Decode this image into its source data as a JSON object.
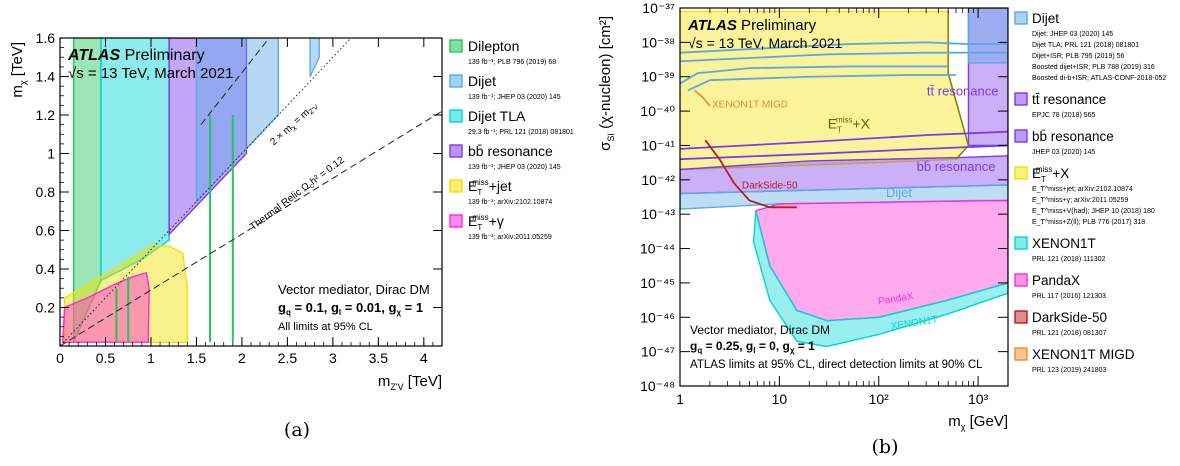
{
  "colors": {
    "green": "#22c55e",
    "blue": "#5aa9e6",
    "cyan": "#00d5d5",
    "purple": "#7c3aed",
    "yellow": "#f2e200",
    "magenta": "#ff2ad4",
    "red": "#b91c1c",
    "orange": "#f28c28"
  },
  "chart_data": [
    {
      "type": "area",
      "panel_label": "(a)",
      "experiment": "ATLAS",
      "status": "Preliminary",
      "energy": "√s = 13 TeV, March 2021",
      "xlabel": "m",
      "xlabel_sub": "Z'V",
      "xlabel_unit": "[TeV]",
      "ylabel": "m",
      "ylabel_sub": "χ",
      "ylabel_unit": "[TeV]",
      "xlim": [
        0,
        4.2
      ],
      "ylim": [
        0,
        1.6
      ],
      "xticks": [
        "0",
        "0.5",
        "1",
        "1.5",
        "2",
        "2.5",
        "3",
        "3.5",
        "4"
      ],
      "yticks": [
        "0.2",
        "0.4",
        "0.6",
        "0.8",
        "1",
        "1.2",
        "1.4",
        "1.6"
      ],
      "diag_label": "2 × m",
      "diag_label_sub": "χ",
      "diag_label_rhs": " = m",
      "diag_label_rhs_sub": "Z'V",
      "relic_label": "Thermal Relic Ω",
      "relic_label_sub": "c",
      "relic_label_tail": "h² = 0.12",
      "info": {
        "line1": "Vector mediator, Dirac DM",
        "line2": "g  = 0.1, g  = 0.01, g  = 1",
        "line2_parts": [
          "g",
          "q",
          " = 0.1, g",
          "l",
          " = 0.01, g",
          "χ",
          " = 1"
        ],
        "line3": "All limits at 95% CL"
      },
      "legend": [
        {
          "name": "Dilepton",
          "ref": "139 fb⁻¹; PLB 796 (2019) 68",
          "color": "#22c55e"
        },
        {
          "name": "Dijet",
          "ref": "139 fb⁻¹; JHEP 03 (2020) 145",
          "color": "#5aa9e6"
        },
        {
          "name": "Dijet TLA",
          "ref": "29.3 fb⁻¹; PRL 121 (2018) 081801",
          "color": "#00d5d5"
        },
        {
          "name": "bb̄ resonance",
          "ref": "139 fb⁻¹; JHEP 03 (2020) 145",
          "color": "#7c3aed"
        },
        {
          "name": "E",
          "name_sup": "miss",
          "name_sub": "T",
          "name_tail": "+jet",
          "ref": "139 fb⁻¹; arXiv:2102.10874",
          "color": "#f2e200"
        },
        {
          "name": "E",
          "name_sup": "miss",
          "name_sub": "T",
          "name_tail": "+γ",
          "ref": "139 fb⁻¹; arXiv:2011.05259",
          "color": "#ff2ad4"
        }
      ],
      "regions": [
        {
          "name": "Dilepton",
          "color": "#22c55e",
          "points": [
            [
              0.15,
              0.02
            ],
            [
              0.15,
              1.6
            ],
            [
              0.45,
              1.6
            ],
            [
              0.45,
              0.34
            ],
            [
              0.15,
              0.02
            ]
          ]
        },
        {
          "name": "Dijet TLA",
          "color": "#00d5d5",
          "points": [
            [
              0.45,
              0.34
            ],
            [
              0.45,
              1.6
            ],
            [
              1.2,
              1.6
            ],
            [
              1.2,
              0.55
            ],
            [
              0.9,
              0.45
            ],
            [
              0.45,
              0.34
            ]
          ]
        },
        {
          "name": "bb̄ resonance",
          "color": "#7c3aed",
          "points": [
            [
              1.2,
              0.58
            ],
            [
              1.2,
              1.6
            ],
            [
              2.05,
              1.6
            ],
            [
              2.05,
              1.0
            ],
            [
              1.2,
              0.58
            ]
          ]
        },
        {
          "name": "Dijet",
          "color": "#5aa9e6",
          "points": [
            [
              1.5,
              0.75
            ],
            [
              1.5,
              1.6
            ],
            [
              2.4,
              1.6
            ],
            [
              2.4,
              1.2
            ],
            [
              1.5,
              0.75
            ]
          ]
        },
        {
          "name": "Dijet high",
          "color": "#5aa9e6",
          "points": [
            [
              2.75,
              1.4
            ],
            [
              2.75,
              1.6
            ],
            [
              2.85,
              1.6
            ],
            [
              2.85,
              1.5
            ],
            [
              2.75,
              1.4
            ]
          ]
        },
        {
          "name": "E_T^miss+jet",
          "color": "#f2e200",
          "points": [
            [
              0.05,
              0.02
            ],
            [
              0.05,
              0.25
            ],
            [
              0.6,
              0.4
            ],
            [
              1.0,
              0.52
            ],
            [
              1.2,
              0.52
            ],
            [
              1.35,
              0.48
            ],
            [
              1.4,
              0.3
            ],
            [
              1.4,
              0.02
            ]
          ]
        },
        {
          "name": "E_T^miss+γ",
          "color": "#ff2ad4",
          "points": [
            [
              0.03,
              0.02
            ],
            [
              0.05,
              0.2
            ],
            [
              0.3,
              0.25
            ],
            [
              0.6,
              0.32
            ],
            [
              0.8,
              0.36
            ],
            [
              0.95,
              0.38
            ],
            [
              0.98,
              0.3
            ],
            [
              0.97,
              0.02
            ]
          ]
        }
      ],
      "lines": [
        {
          "name": "diag",
          "style": "dotted",
          "points": [
            [
              0,
              0
            ],
            [
              3.2,
              1.6
            ]
          ]
        },
        {
          "name": "relic",
          "style": "dashed",
          "points": [
            [
              0,
              0
            ],
            [
              4.2,
              1.22
            ]
          ]
        },
        {
          "name": "relic2",
          "style": "dashed",
          "points": [
            [
              1.55,
              1.15
            ],
            [
              2.3,
              1.6
            ]
          ]
        }
      ]
    },
    {
      "type": "line",
      "panel_label": "(b)",
      "experiment": "ATLAS",
      "status": "Preliminary",
      "energy": "√s = 13 TeV, March 2021",
      "xlabel": "m",
      "xlabel_sub": "χ",
      "xlabel_unit": "[GeV]",
      "ylabel": "σ",
      "ylabel_sub": "SI",
      "ylabel_unit": "(χ-nucleon) [cm²]",
      "x_scale": "log",
      "y_scale": "log",
      "xlim": [
        1,
        2000
      ],
      "ylim": [
        1e-48,
        1e-37
      ],
      "xticks": [
        {
          "value": 1,
          "label": "1"
        },
        {
          "value": 10,
          "label": "10"
        },
        {
          "value": 100,
          "label": "10²"
        },
        {
          "value": 1000,
          "label": "10³"
        }
      ],
      "yticks": [
        {
          "exp": -37,
          "label": "10⁻³⁷"
        },
        {
          "exp": -38,
          "label": "10⁻³⁸"
        },
        {
          "exp": -39,
          "label": "10⁻³⁹"
        },
        {
          "exp": -40,
          "label": "10⁻⁴⁰"
        },
        {
          "exp": -41,
          "label": "10⁻⁴¹"
        },
        {
          "exp": -42,
          "label": "10⁻⁴²"
        },
        {
          "exp": -43,
          "label": "10⁻⁴³"
        },
        {
          "exp": -44,
          "label": "10⁻⁴⁴"
        },
        {
          "exp": -45,
          "label": "10⁻⁴⁵"
        },
        {
          "exp": -46,
          "label": "10⁻⁴⁶"
        },
        {
          "exp": -47,
          "label": "10⁻⁴⁷"
        },
        {
          "exp": -48,
          "label": "10⁻⁴⁸"
        }
      ],
      "info": {
        "line1": "Vector mediator, Dirac DM",
        "line2_parts": [
          "g",
          "q",
          " = 0.25, g",
          "l",
          " = 0, g",
          "χ",
          " = 1"
        ],
        "line3": "ATLAS limits at 95% CL, direct detection limits at 90% CL"
      },
      "annotations": [
        {
          "text": "XENON1T MIGD",
          "color": "#f28c28",
          "x": 2.1,
          "y": -39.9
        },
        {
          "text": "DarkSide-50",
          "color": "#b91c1c",
          "x": 4.2,
          "y": -42.25
        },
        {
          "text": "Dijet",
          "color": "#5aa9e6",
          "x": 160,
          "y": -42.5
        },
        {
          "text": "tt̄ resonance",
          "color": "#7c3aed",
          "x": 700,
          "y": -39.55
        },
        {
          "text": "bb̄ resonance",
          "color": "#7c3aed",
          "x": 600,
          "y": -41.75
        },
        {
          "text": "PandaX",
          "color": "#ff2ad4",
          "x": 150,
          "y": -45.55
        },
        {
          "text": "XENON1T",
          "color": "#00d5d5",
          "x": 230,
          "y": -46.25
        }
      ],
      "etmiss_label": {
        "base": "E",
        "sup": "miss",
        "sub": "T",
        "tail": "+X",
        "x": 50,
        "y": -40.5
      },
      "legend": [
        {
          "name": "Dijet",
          "color": "#5aa9e6",
          "refs": [
            "Dijet: JHEP 03 (2020) 145",
            "Dijet TLA; PRL 121 (2018) 081801",
            "Dijet+ISR; PLB 795 (2019) 56",
            "Boosted dijet+ISR; PLB 788 (2019) 316",
            "Boosted di-b+ISR; ATLAS-CONF-2018-052"
          ]
        },
        {
          "name": "tt̄ resonance",
          "color": "#7c3aed",
          "refs": [
            "EPJC 78 (2018) 565"
          ]
        },
        {
          "name": "bb̄ resonance",
          "color": "#7c3aed",
          "refs": [
            "JHEP 03 (2020) 145"
          ]
        },
        {
          "name": "E",
          "name_sup": "miss",
          "name_sub": "T",
          "name_tail": "+X",
          "color": "#f2e200",
          "refs": [
            "E_T^miss+jet; arXiv:2102.10874",
            "E_T^miss+γ; arXiv:2011.05259",
            "E_T^miss+V(had); JHEP 10 (2018) 180",
            "E_T^miss+Z(ll); PLB 776 (2017) 318"
          ]
        },
        {
          "name": "XENON1T",
          "color": "#00d5d5",
          "refs": [
            "PRL 121 (2018) 111302"
          ]
        },
        {
          "name": "PandaX",
          "color": "#ff2ad4",
          "refs": [
            "PRL 117 (2016) 121303"
          ]
        },
        {
          "name": "DarkSide-50",
          "color": "#b91c1c",
          "refs": [
            "PRL 121 (2018) 081307"
          ]
        },
        {
          "name": "XENON1T MIGD",
          "color": "#f28c28",
          "refs": [
            "PRL 123 (2019) 241803"
          ]
        }
      ],
      "regions": [
        {
          "name": "E_T^miss+X",
          "color": "#f2e200",
          "points": [
            [
              1,
              -37.1
            ],
            [
              500,
              -37.1
            ],
            [
              500,
              -38.9
            ],
            [
              800,
              -41.0
            ],
            [
              600,
              -41.4
            ],
            [
              100,
              -41.5
            ],
            [
              10,
              -41.6
            ],
            [
              1,
              -41.7
            ]
          ]
        },
        {
          "name": "tt̄ resonance",
          "color": "#7c3aed",
          "points": [
            [
              800,
              -37
            ],
            [
              2000,
              -37
            ],
            [
              2000,
              -41
            ],
            [
              800,
              -41
            ]
          ]
        },
        {
          "name": "bb̄ resonance",
          "color": "#7c3aed",
          "points": [
            [
              1,
              -41.7
            ],
            [
              20,
              -41.45
            ],
            [
              700,
              -41.35
            ],
            [
              2000,
              -41.3
            ],
            [
              2000,
              -42.15
            ],
            [
              1,
              -42.4
            ]
          ]
        },
        {
          "name": "Dijet",
          "color": "#5aa9e6",
          "points": [
            [
              1,
              -42.4
            ],
            [
              2000,
              -42.15
            ],
            [
              2000,
              -42.6
            ],
            [
              1000,
              -42.6
            ],
            [
              100,
              -42.65
            ],
            [
              10,
              -42.7
            ],
            [
              1,
              -42.85
            ]
          ]
        },
        {
          "name": "Dijet upper",
          "color": "#5aa9e6",
          "points": [
            [
              800,
              -37
            ],
            [
              2000,
              -37
            ],
            [
              2000,
              -38.6
            ],
            [
              800,
              -38.6
            ]
          ]
        },
        {
          "name": "PandaX",
          "color": "#ff2ad4",
          "points": [
            [
              5.8,
              -42.9
            ],
            [
              8,
              -44.5
            ],
            [
              15,
              -45.8
            ],
            [
              30,
              -46.1
            ],
            [
              100,
              -46.0
            ],
            [
              500,
              -45.5
            ],
            [
              2000,
              -45.0
            ],
            [
              2000,
              -42.6
            ],
            [
              10,
              -42.7
            ],
            [
              5.8,
              -42.9
            ]
          ]
        },
        {
          "name": "XENON1T",
          "color": "#00d5d5",
          "points": [
            [
              5.5,
              -43.8
            ],
            [
              8,
              -45.5
            ],
            [
              15,
              -46.7
            ],
            [
              30,
              -46.85
            ],
            [
              100,
              -46.5
            ],
            [
              500,
              -45.9
            ],
            [
              2000,
              -45.3
            ],
            [
              2000,
              -45.0
            ],
            [
              500,
              -45.5
            ],
            [
              100,
              -46.0
            ],
            [
              30,
              -46.1
            ],
            [
              15,
              -45.8
            ],
            [
              8,
              -44.5
            ],
            [
              5.8,
              -42.9
            ]
          ]
        }
      ],
      "curves": [
        {
          "name": "Dijet contour 1",
          "color": "#5aa9e6",
          "points": [
            [
              1,
              -38.3
            ],
            [
              50,
              -38.05
            ],
            [
              300,
              -38.0
            ],
            [
              800,
              -38.05
            ],
            [
              2000,
              -38.05
            ]
          ]
        },
        {
          "name": "Dijet contour 2",
          "color": "#5aa9e6",
          "points": [
            [
              1,
              -38.55
            ],
            [
              30,
              -38.35
            ],
            [
              300,
              -38.3
            ],
            [
              2000,
              -38.3
            ]
          ]
        },
        {
          "name": "Dijet contour 3",
          "color": "#5aa9e6",
          "points": [
            [
              1,
              -39.2
            ],
            [
              1.5,
              -38.9
            ],
            [
              5,
              -38.75
            ],
            [
              50,
              -38.7
            ],
            [
              500,
              -38.7
            ]
          ]
        },
        {
          "name": "Dijet contour 4",
          "color": "#5aa9e6",
          "points": [
            [
              1.2,
              -39.4
            ],
            [
              2,
              -39.1
            ],
            [
              20,
              -39.0
            ],
            [
              200,
              -38.95
            ],
            [
              600,
              -38.95
            ]
          ]
        },
        {
          "name": "bb purple contour",
          "color": "#7c3aed",
          "points": [
            [
              1,
              -41.1
            ],
            [
              20,
              -40.9
            ],
            [
              300,
              -40.7
            ],
            [
              2000,
              -40.6
            ]
          ]
        },
        {
          "name": "bb purple contour 2",
          "color": "#7c3aed",
          "points": [
            [
              1,
              -41.4
            ],
            [
              20,
              -41.25
            ],
            [
              300,
              -41.1
            ],
            [
              2000,
              -41.0
            ]
          ]
        },
        {
          "name": "XENON1T MIGD",
          "color": "#f28c28",
          "points": [
            [
              1.4,
              -39.4
            ],
            [
              1.7,
              -39.6
            ],
            [
              2.0,
              -39.85
            ]
          ]
        },
        {
          "name": "DarkSide-50",
          "color": "#b91c1c",
          "points": [
            [
              1.8,
              -40.85
            ],
            [
              2.5,
              -41.4
            ],
            [
              3.5,
              -42.1
            ],
            [
              5,
              -42.6
            ],
            [
              8,
              -42.8
            ],
            [
              15,
              -42.8
            ]
          ]
        }
      ]
    }
  ]
}
